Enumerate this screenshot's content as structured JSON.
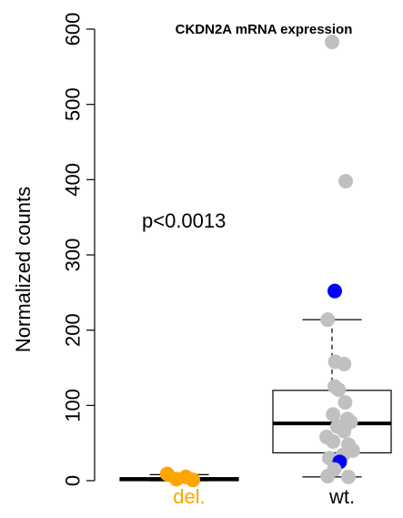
{
  "chart_data": {
    "type": "box",
    "title": "CKDN2A mRNA expression",
    "ylabel": "Normalized counts",
    "ylim": [
      0,
      600
    ],
    "yticks": [
      0,
      100,
      200,
      300,
      400,
      500,
      600
    ],
    "annotation": "p<0.0013",
    "groups": [
      {
        "name": "del.",
        "label_color": "#FFA500",
        "box": {
          "min": 0,
          "q1": 0,
          "median": 2,
          "q3": 4,
          "max": 8
        },
        "points": [
          {
            "y": 9,
            "color": "#FFA500",
            "dx": -0.22
          },
          {
            "y": 2,
            "color": "#FFA500",
            "dx": -0.05
          },
          {
            "y": 5,
            "color": "#FFA500",
            "dx": 0.12
          },
          {
            "y": 1,
            "color": "#FFA500",
            "dx": 0.25
          }
        ]
      },
      {
        "name": "wt.",
        "label_color": "#000000",
        "box": {
          "min": 5,
          "q1": 37,
          "median": 76,
          "q3": 120,
          "max": 214
        },
        "points": [
          {
            "y": 583,
            "color": "#C0C0C0",
            "dx": 0.0
          },
          {
            "y": 398,
            "color": "#C0C0C0",
            "dx": 0.25
          },
          {
            "y": 252,
            "color": "#0000FF",
            "dx": 0.05
          },
          {
            "y": 214,
            "color": "#C0C0C0",
            "dx": -0.08
          },
          {
            "y": 158,
            "color": "#C0C0C0",
            "dx": 0.06
          },
          {
            "y": 155,
            "color": "#C0C0C0",
            "dx": 0.22
          },
          {
            "y": 125,
            "color": "#C0C0C0",
            "dx": 0.05
          },
          {
            "y": 121,
            "color": "#C0C0C0",
            "dx": 0.12
          },
          {
            "y": 104,
            "color": "#C0C0C0",
            "dx": 0.24
          },
          {
            "y": 88,
            "color": "#C0C0C0",
            "dx": 0.02
          },
          {
            "y": 82,
            "color": "#C0C0C0",
            "dx": 0.28
          },
          {
            "y": 78,
            "color": "#C0C0C0",
            "dx": 0.34
          },
          {
            "y": 72,
            "color": "#C0C0C0",
            "dx": 0.1
          },
          {
            "y": 66,
            "color": "#C0C0C0",
            "dx": 0.22
          },
          {
            "y": 58,
            "color": "#C0C0C0",
            "dx": -0.1
          },
          {
            "y": 52,
            "color": "#C0C0C0",
            "dx": 0.02
          },
          {
            "y": 48,
            "color": "#C0C0C0",
            "dx": 0.3
          },
          {
            "y": 40,
            "color": "#C0C0C0",
            "dx": 0.38
          },
          {
            "y": 34,
            "color": "#C0C0C0",
            "dx": 0.2
          },
          {
            "y": 30,
            "color": "#C0C0C0",
            "dx": -0.05
          },
          {
            "y": 25,
            "color": "#0000FF",
            "dx": 0.14
          },
          {
            "y": 15,
            "color": "#C0C0C0",
            "dx": 0.04
          },
          {
            "y": 6,
            "color": "#C0C0C0",
            "dx": -0.08
          },
          {
            "y": 5,
            "color": "#C0C0C0",
            "dx": 0.3
          }
        ]
      }
    ]
  }
}
